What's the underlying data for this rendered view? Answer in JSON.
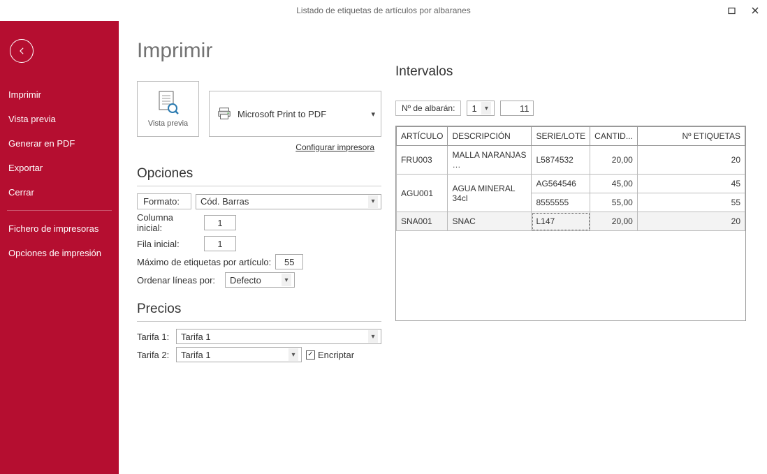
{
  "window": {
    "title": "Listado de etiquetas de artículos por albaranes"
  },
  "sidebar": {
    "items": [
      "Imprimir",
      "Vista previa",
      "Generar en PDF",
      "Exportar",
      "Cerrar"
    ],
    "items2": [
      "Fichero de impresoras",
      "Opciones de impresión"
    ]
  },
  "page": {
    "title": "Imprimir"
  },
  "preview": {
    "label": "Vista previa"
  },
  "printer": {
    "name": "Microsoft Print to PDF",
    "config_link": "Configurar impresora"
  },
  "opciones": {
    "head": "Opciones",
    "formato_label": "Formato:",
    "formato_value": "Cód. Barras",
    "col_label": "Columna inicial:",
    "col_value": "1",
    "row_label": "Fila inicial:",
    "row_value": "1",
    "max_label": "Máximo de etiquetas por artículo:",
    "max_value": "55",
    "order_label": "Ordenar líneas por:",
    "order_value": "Defecto"
  },
  "precios": {
    "head": "Precios",
    "t1_label": "Tarifa 1:",
    "t1_value": "Tarifa 1",
    "t2_label": "Tarifa 2:",
    "t2_value": "Tarifa 1",
    "encrypt_label": "Encriptar",
    "encrypt_checked": true
  },
  "intervalos": {
    "head": "Intervalos",
    "label": "Nº de albarán:",
    "from": "1",
    "to": "11"
  },
  "table": {
    "columns": [
      "ARTÍCULO",
      "DESCRIPCIÓN",
      "SERIE/LOTE",
      "CANTID...",
      "Nº ETIQUETAS"
    ],
    "col_widths": [
      "70px",
      "120px",
      "75px",
      "60px",
      "auto"
    ],
    "col_align": [
      "left",
      "left",
      "left",
      "right",
      "right"
    ],
    "cells": [
      {
        "art": "FRU003",
        "desc": "MALLA NARANJAS …",
        "serie": "L5874532",
        "cant": "20,00",
        "etq": "20",
        "rowspan_art": 1,
        "rowspan_desc": 1
      },
      {
        "art": "AGU001",
        "desc": "AGUA MINERAL 34cl",
        "serie": "AG564546",
        "cant": "45,00",
        "etq": "45",
        "rowspan_art": 2,
        "rowspan_desc": 2
      },
      {
        "art": "",
        "desc": "",
        "serie": "8555555",
        "cant": "55,00",
        "etq": "55",
        "rowspan_art": 0,
        "rowspan_desc": 0
      },
      {
        "art": "SNA001",
        "desc": "SNAC",
        "serie": "L147",
        "cant": "20,00",
        "etq": "20",
        "rowspan_art": 1,
        "rowspan_desc": 1,
        "selected": true,
        "focus_col": 2
      }
    ],
    "selected_bg": "#f3f3f3"
  },
  "colors": {
    "accent": "#b50e30",
    "border": "#aaaaaa"
  }
}
